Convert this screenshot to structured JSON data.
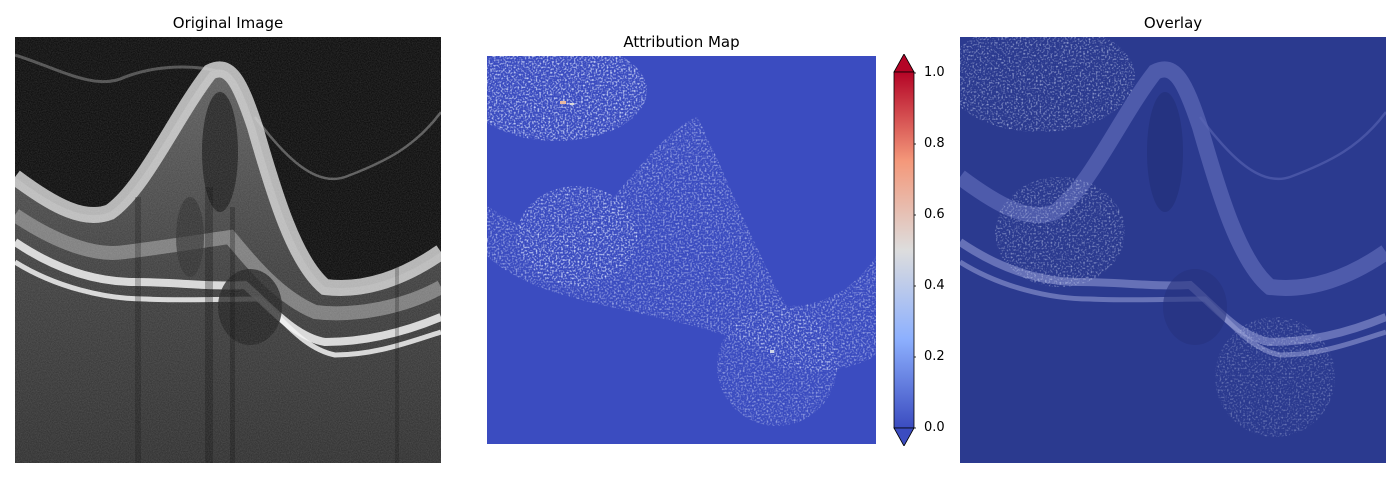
{
  "panels": [
    {
      "title": "Original Image"
    },
    {
      "title": "Attribution Map"
    },
    {
      "title": "Overlay"
    }
  ],
  "colorbar": {
    "colormap": "coolwarm",
    "ticks": [
      "1.0",
      "0.8",
      "0.6",
      "0.4",
      "0.2",
      "0.0"
    ],
    "range": [
      0.0,
      1.0
    ]
  },
  "colors": {
    "low": "#3b4cc0",
    "mid": "#dddddd",
    "high": "#b40426",
    "overlay_tint": "#2b3a8f"
  }
}
